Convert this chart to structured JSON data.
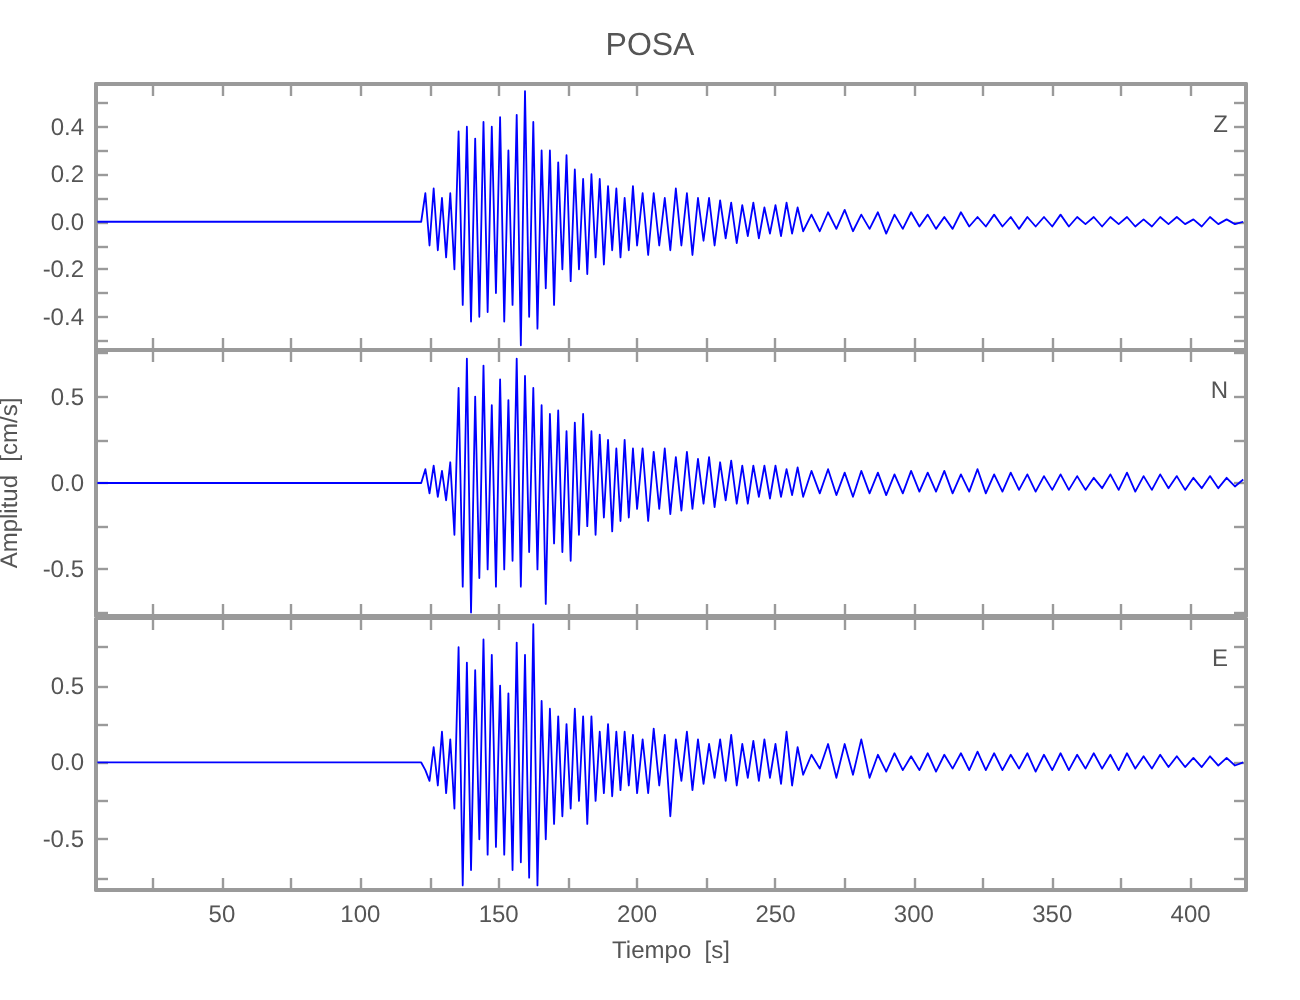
{
  "chart_data": [
    {
      "type": "line",
      "title": "POSA",
      "annotations": [
        "Z"
      ],
      "marker": "none",
      "tick_labels": "y",
      "xlim": [
        4.5,
        420
      ],
      "xticks": [
        {
          "value": 25,
          "label": null
        },
        {
          "value": 50,
          "label": null
        },
        {
          "value": 75,
          "label": null
        },
        {
          "value": 100,
          "label": null
        },
        {
          "value": 125,
          "label": null
        },
        {
          "value": 150,
          "label": null
        },
        {
          "value": 175,
          "label": null
        },
        {
          "value": 200,
          "label": null
        },
        {
          "value": 225,
          "label": null
        },
        {
          "value": 250,
          "label": null
        },
        {
          "value": 275,
          "label": null
        },
        {
          "value": 300,
          "label": null
        },
        {
          "value": 325,
          "label": null
        },
        {
          "value": 350,
          "label": null
        },
        {
          "value": 375,
          "label": null
        },
        {
          "value": 400,
          "label": null
        }
      ],
      "ylim": [
        -0.54,
        0.58
      ],
      "yticks": [
        {
          "value": -0.5,
          "label": null
        },
        -0.4,
        {
          "value": -0.3,
          "label": null
        },
        -0.2,
        {
          "value": -0.1,
          "label": null
        },
        {
          "value": 0,
          "label": "0.0"
        },
        {
          "value": 0.1,
          "label": null
        },
        0.2,
        {
          "value": 0.3,
          "label": null
        },
        0.4,
        {
          "value": 0.5,
          "label": null
        }
      ],
      "x": [
        5,
        122,
        123.5,
        125,
        126.5,
        128,
        129.5,
        131,
        132.5,
        134,
        135.5,
        137,
        138.5,
        140,
        141.5,
        143,
        144.5,
        146,
        147.5,
        149,
        150.5,
        152,
        153.5,
        155,
        156.5,
        158,
        159.5,
        161,
        162.5,
        164,
        165.5,
        167,
        168.5,
        170,
        171.5,
        173,
        174.5,
        176,
        177.5,
        179,
        180.5,
        182,
        183.5,
        185,
        186.5,
        188,
        189.5,
        191,
        192.5,
        194,
        195.5,
        197,
        198.5,
        200,
        202,
        204,
        206,
        208,
        210,
        212,
        214,
        216,
        218,
        220,
        222,
        224,
        226,
        228,
        230,
        232,
        234,
        236,
        238,
        240,
        242,
        244,
        246,
        248,
        250,
        252,
        254,
        256,
        258,
        260,
        263,
        266,
        269,
        272,
        275,
        278,
        281,
        284,
        287,
        290,
        293,
        296,
        299,
        302,
        305,
        308,
        311,
        314,
        317,
        320,
        323,
        326,
        329,
        332,
        335,
        338,
        341,
        344,
        347,
        350,
        353,
        356,
        359,
        362,
        365,
        368,
        371,
        374,
        377,
        380,
        383,
        386,
        389,
        392,
        395,
        398,
        401,
        404,
        407,
        410,
        413,
        416,
        419
      ],
      "series": [
        {
          "color": "#0000ff",
          "values": [
            0,
            0,
            0.12,
            -0.1,
            0.14,
            -0.12,
            0.1,
            -0.15,
            0.12,
            -0.2,
            0.38,
            -0.35,
            0.4,
            -0.42,
            0.35,
            -0.4,
            0.42,
            -0.38,
            0.4,
            -0.3,
            0.44,
            -0.42,
            0.3,
            -0.35,
            0.45,
            -0.52,
            0.55,
            -0.4,
            0.42,
            -0.45,
            0.3,
            -0.28,
            0.3,
            -0.35,
            0.25,
            -0.2,
            0.28,
            -0.25,
            0.22,
            -0.2,
            0.18,
            -0.22,
            0.2,
            -0.15,
            0.18,
            -0.18,
            0.15,
            -0.12,
            0.14,
            -0.15,
            0.1,
            -0.12,
            0.15,
            -0.1,
            0.12,
            -0.14,
            0.12,
            -0.1,
            0.1,
            -0.12,
            0.14,
            -0.1,
            0.12,
            -0.14,
            0.1,
            -0.08,
            0.1,
            -0.1,
            0.09,
            -0.07,
            0.08,
            -0.09,
            0.07,
            -0.06,
            0.08,
            -0.07,
            0.06,
            -0.05,
            0.07,
            -0.06,
            0.08,
            -0.05,
            0.06,
            -0.04,
            0.03,
            -0.04,
            0.04,
            -0.03,
            0.05,
            -0.04,
            0.03,
            -0.03,
            0.04,
            -0.05,
            0.03,
            -0.03,
            0.04,
            -0.02,
            0.03,
            -0.03,
            0.02,
            -0.03,
            0.04,
            -0.02,
            0.02,
            -0.02,
            0.03,
            -0.02,
            0.02,
            -0.03,
            0.02,
            -0.02,
            0.02,
            -0.02,
            0.03,
            -0.02,
            0.02,
            -0.01,
            0.02,
            -0.02,
            0.02,
            -0.01,
            0.02,
            -0.02,
            0.01,
            -0.02,
            0.02,
            -0.01,
            0.02,
            -0.01,
            0.01,
            -0.02,
            0.02,
            -0.01,
            0.01,
            -0.01,
            0
          ]
        }
      ]
    },
    {
      "type": "line",
      "ylabel": "Amplitud  [cm/s]",
      "annotations": [
        "N"
      ],
      "marker": "none",
      "tick_labels": "y",
      "xlim": [
        4.5,
        420
      ],
      "xticks": [
        {
          "value": 25,
          "label": null
        },
        {
          "value": 50,
          "label": null
        },
        {
          "value": 75,
          "label": null
        },
        {
          "value": 100,
          "label": null
        },
        {
          "value": 125,
          "label": null
        },
        {
          "value": 150,
          "label": null
        },
        {
          "value": 175,
          "label": null
        },
        {
          "value": 200,
          "label": null
        },
        {
          "value": 225,
          "label": null
        },
        {
          "value": 250,
          "label": null
        },
        {
          "value": 275,
          "label": null
        },
        {
          "value": 300,
          "label": null
        },
        {
          "value": 325,
          "label": null
        },
        {
          "value": 350,
          "label": null
        },
        {
          "value": 375,
          "label": null
        },
        {
          "value": 400,
          "label": null
        }
      ],
      "ylim": [
        -0.77,
        0.77
      ],
      "yticks": [
        {
          "value": -0.75,
          "label": null
        },
        -0.5,
        {
          "value": -0.25,
          "label": null
        },
        {
          "value": 0,
          "label": "0.0"
        },
        {
          "value": 0.25,
          "label": null
        },
        0.5,
        {
          "value": 0.75,
          "label": null
        }
      ],
      "x": [
        5,
        122,
        123.5,
        125,
        126.5,
        128,
        129.5,
        131,
        132.5,
        134,
        135.5,
        137,
        138.5,
        140,
        141.5,
        143,
        144.5,
        146,
        147.5,
        149,
        150.5,
        152,
        153.5,
        155,
        156.5,
        158,
        159.5,
        161,
        162.5,
        164,
        165.5,
        167,
        168.5,
        170,
        171.5,
        173,
        174.5,
        176,
        177.5,
        179,
        180.5,
        182,
        183.5,
        185,
        186.5,
        188,
        189.5,
        191,
        192.5,
        194,
        195.5,
        197,
        198.5,
        200,
        202,
        204,
        206,
        208,
        210,
        212,
        214,
        216,
        218,
        220,
        222,
        224,
        226,
        228,
        230,
        232,
        234,
        236,
        238,
        240,
        242,
        244,
        246,
        248,
        250,
        252,
        254,
        256,
        258,
        260,
        263,
        266,
        269,
        272,
        275,
        278,
        281,
        284,
        287,
        290,
        293,
        296,
        299,
        302,
        305,
        308,
        311,
        314,
        317,
        320,
        323,
        326,
        329,
        332,
        335,
        338,
        341,
        344,
        347,
        350,
        353,
        356,
        359,
        362,
        365,
        368,
        371,
        374,
        377,
        380,
        383,
        386,
        389,
        392,
        395,
        398,
        401,
        404,
        407,
        410,
        413,
        416,
        419
      ],
      "series": [
        {
          "color": "#0000ff",
          "values": [
            0,
            0,
            0.08,
            -0.06,
            0.1,
            -0.08,
            0.07,
            -0.1,
            0.12,
            -0.3,
            0.55,
            -0.6,
            0.72,
            -0.75,
            0.5,
            -0.55,
            0.68,
            -0.5,
            0.45,
            -0.6,
            0.6,
            -0.5,
            0.48,
            -0.45,
            0.72,
            -0.6,
            0.62,
            -0.4,
            0.55,
            -0.5,
            0.45,
            -0.7,
            0.4,
            -0.35,
            0.42,
            -0.4,
            0.3,
            -0.45,
            0.35,
            -0.3,
            0.4,
            -0.25,
            0.3,
            -0.3,
            0.28,
            -0.2,
            0.25,
            -0.28,
            0.2,
            -0.22,
            0.25,
            -0.2,
            0.2,
            -0.15,
            0.2,
            -0.22,
            0.18,
            -0.15,
            0.2,
            -0.18,
            0.15,
            -0.16,
            0.18,
            -0.15,
            0.14,
            -0.12,
            0.15,
            -0.14,
            0.12,
            -0.1,
            0.13,
            -0.12,
            0.1,
            -0.12,
            0.1,
            -0.08,
            0.1,
            -0.09,
            0.1,
            -0.08,
            0.08,
            -0.07,
            0.09,
            -0.08,
            0.07,
            -0.06,
            0.08,
            -0.07,
            0.06,
            -0.08,
            0.07,
            -0.06,
            0.06,
            -0.07,
            0.05,
            -0.06,
            0.07,
            -0.05,
            0.06,
            -0.05,
            0.07,
            -0.06,
            0.05,
            -0.05,
            0.08,
            -0.06,
            0.05,
            -0.05,
            0.06,
            -0.04,
            0.05,
            -0.05,
            0.04,
            -0.04,
            0.05,
            -0.04,
            0.04,
            -0.04,
            0.03,
            -0.03,
            0.05,
            -0.04,
            0.06,
            -0.05,
            0.04,
            -0.04,
            0.05,
            -0.03,
            0.04,
            -0.04,
            0.03,
            -0.03,
            0.04,
            -0.03,
            0.03,
            -0.02,
            0.02
          ]
        }
      ]
    },
    {
      "type": "line",
      "xlabel": "Tiempo  [s]",
      "annotations": [
        "E"
      ],
      "marker": "none",
      "xlim": [
        4.5,
        420
      ],
      "xticks": [
        {
          "value": 25,
          "label": null
        },
        50,
        {
          "value": 75,
          "label": null
        },
        100,
        {
          "value": 125,
          "label": null
        },
        150,
        {
          "value": 175,
          "label": null
        },
        200,
        {
          "value": 225,
          "label": null
        },
        250,
        {
          "value": 275,
          "label": null
        },
        300,
        {
          "value": 325,
          "label": null
        },
        350,
        {
          "value": 375,
          "label": null
        },
        400
      ],
      "ylim": [
        -0.83,
        0.94
      ],
      "yticks": [
        {
          "value": -0.75,
          "label": null
        },
        -0.5,
        {
          "value": -0.25,
          "label": null
        },
        {
          "value": 0,
          "label": "0.0"
        },
        {
          "value": 0.25,
          "label": null
        },
        0.5,
        {
          "value": 0.75,
          "label": null
        }
      ],
      "x": [
        5,
        122,
        123.5,
        125,
        126.5,
        128,
        129.5,
        131,
        132.5,
        134,
        135.5,
        137,
        138.5,
        140,
        141.5,
        143,
        144.5,
        146,
        147.5,
        149,
        150.5,
        152,
        153.5,
        155,
        156.5,
        158,
        159.5,
        161,
        162.5,
        164,
        165.5,
        167,
        168.5,
        170,
        171.5,
        173,
        174.5,
        176,
        177.5,
        179,
        180.5,
        182,
        183.5,
        185,
        186.5,
        188,
        189.5,
        191,
        192.5,
        194,
        195.5,
        197,
        198.5,
        200,
        202,
        204,
        206,
        208,
        210,
        212,
        214,
        216,
        218,
        220,
        222,
        224,
        226,
        228,
        230,
        232,
        234,
        236,
        238,
        240,
        242,
        244,
        246,
        248,
        250,
        252,
        254,
        256,
        258,
        260,
        263,
        266,
        269,
        272,
        275,
        278,
        281,
        284,
        287,
        290,
        293,
        296,
        299,
        302,
        305,
        308,
        311,
        314,
        317,
        320,
        323,
        326,
        329,
        332,
        335,
        338,
        341,
        344,
        347,
        350,
        353,
        356,
        359,
        362,
        365,
        368,
        371,
        374,
        377,
        380,
        383,
        386,
        389,
        392,
        395,
        398,
        401,
        404,
        407,
        410,
        413,
        416,
        419
      ],
      "series": [
        {
          "color": "#0000ff",
          "values": [
            0,
            0,
            -0.05,
            -0.12,
            0.1,
            -0.15,
            0.2,
            -0.2,
            0.15,
            -0.3,
            0.75,
            -0.8,
            0.65,
            -0.7,
            0.6,
            -0.5,
            0.8,
            -0.6,
            0.7,
            -0.55,
            0.5,
            -0.6,
            0.45,
            -0.7,
            0.78,
            -0.65,
            0.7,
            -0.75,
            0.9,
            -0.8,
            0.4,
            -0.5,
            0.35,
            -0.4,
            0.3,
            -0.35,
            0.25,
            -0.3,
            0.35,
            -0.25,
            0.3,
            -0.4,
            0.3,
            -0.25,
            0.2,
            -0.2,
            0.25,
            -0.22,
            0.2,
            -0.18,
            0.2,
            -0.15,
            0.18,
            -0.2,
            0.15,
            -0.2,
            0.22,
            -0.15,
            0.18,
            -0.35,
            0.15,
            -0.12,
            0.2,
            -0.18,
            0.15,
            -0.14,
            0.12,
            -0.1,
            0.15,
            -0.12,
            0.18,
            -0.15,
            0.12,
            -0.1,
            0.14,
            -0.12,
            0.15,
            -0.1,
            0.12,
            -0.14,
            0.2,
            -0.15,
            0.1,
            -0.08,
            0.05,
            -0.04,
            0.12,
            -0.1,
            0.12,
            -0.08,
            0.15,
            -0.1,
            0.05,
            -0.06,
            0.06,
            -0.05,
            0.04,
            -0.05,
            0.06,
            -0.06,
            0.05,
            -0.04,
            0.06,
            -0.05,
            0.07,
            -0.05,
            0.06,
            -0.05,
            0.05,
            -0.04,
            0.06,
            -0.06,
            0.05,
            -0.05,
            0.06,
            -0.05,
            0.05,
            -0.04,
            0.06,
            -0.04,
            0.05,
            -0.05,
            0.06,
            -0.04,
            0.04,
            -0.04,
            0.05,
            -0.03,
            0.04,
            -0.03,
            0.03,
            -0.03,
            0.04,
            -0.02,
            0.03,
            -0.02,
            0
          ]
        }
      ]
    }
  ]
}
